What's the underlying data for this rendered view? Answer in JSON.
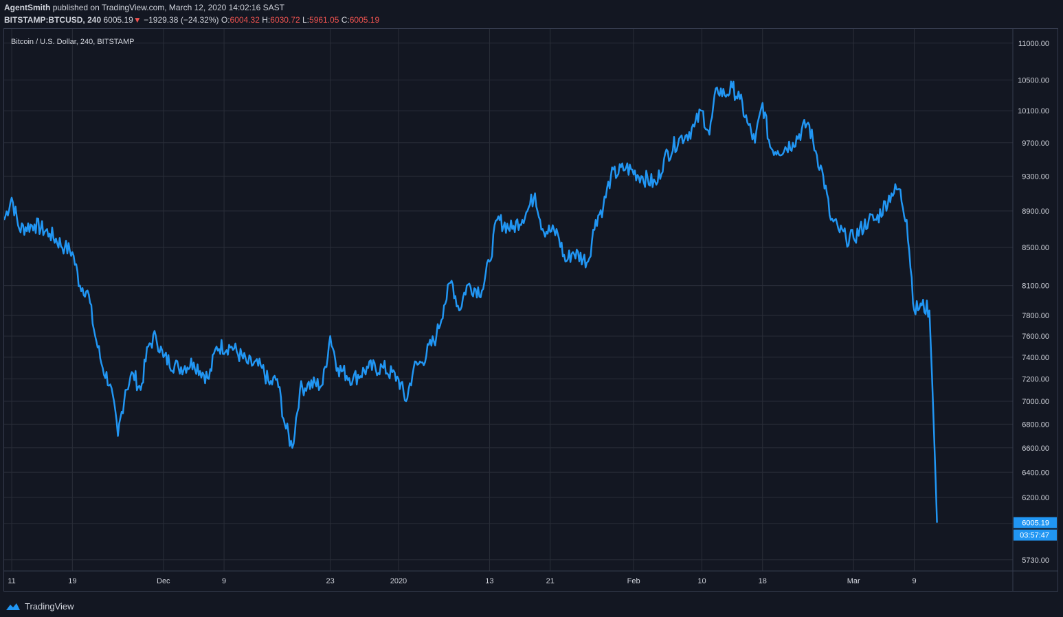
{
  "header": {
    "author": "AgentSmith",
    "published_text": "published on TradingView.com, March 12, 2020 14:02:16 SAST",
    "symbol": "BITSTAMP:BTCUSD, 240",
    "last": "6005.19",
    "change": "−1929.38 (−24.32%)",
    "open_label": "O:",
    "open": "6004.32",
    "high_label": "H:",
    "high": "6030.72",
    "low_label": "L:",
    "low": "5961.05",
    "close_label": "C:",
    "close": "6005.19",
    "down_arrow_icon": "triangle-down-icon",
    "neg_color": "#ef5350"
  },
  "footer": {
    "brand": "TradingView",
    "logo_icon": "tradingview-logo-icon"
  },
  "chart_data": {
    "type": "line",
    "title": "Bitcoin / U.S. Dollar, 240, BITSTAMP",
    "line_color": "#2196f3",
    "y_scale": "log",
    "ylim": [
      5650,
      11200
    ],
    "grid": true,
    "y_ticks": [
      "11000.00",
      "10500.00",
      "10100.00",
      "9700.00",
      "9300.00",
      "8900.00",
      "8500.00",
      "8100.00",
      "7800.00",
      "7600.00",
      "7400.00",
      "7200.00",
      "7000.00",
      "6800.00",
      "6600.00",
      "6400.00",
      "6200.00",
      "6000.00",
      "5730.00"
    ],
    "x_ticks": [
      {
        "label": "11",
        "date": "2019-11-11"
      },
      {
        "label": "19",
        "date": "2019-11-19"
      },
      {
        "label": "Dec",
        "date": "2019-12-01"
      },
      {
        "label": "9",
        "date": "2019-12-09"
      },
      {
        "label": "23",
        "date": "2019-12-23"
      },
      {
        "label": "2020",
        "date": "2020-01-01"
      },
      {
        "label": "13",
        "date": "2020-01-13"
      },
      {
        "label": "21",
        "date": "2020-01-21"
      },
      {
        "label": "Feb",
        "date": "2020-02-01"
      },
      {
        "label": "10",
        "date": "2020-02-10"
      },
      {
        "label": "18",
        "date": "2020-02-18"
      },
      {
        "label": "Mar",
        "date": "2020-03-01"
      },
      {
        "label": "9",
        "date": "2020-03-09"
      }
    ],
    "x_range": [
      "2019-11-10",
      "2020-03-22"
    ],
    "price_badge": {
      "value": "6005.19",
      "countdown": "03:57:47",
      "color": "#2196f3"
    },
    "series": [
      {
        "x": [
          "2019-11-10",
          "2019-11-11",
          "2019-11-12",
          "2019-11-14",
          "2019-11-16",
          "2019-11-18",
          "2019-11-19",
          "2019-11-20",
          "2019-11-21",
          "2019-11-22",
          "2019-11-23",
          "2019-11-24",
          "2019-11-25",
          "2019-11-26",
          "2019-11-27",
          "2019-11-28",
          "2019-11-29",
          "2019-11-30",
          "2019-12-01",
          "2019-12-03",
          "2019-12-05",
          "2019-12-07",
          "2019-12-08",
          "2019-12-10",
          "2019-12-12",
          "2019-12-14",
          "2019-12-15",
          "2019-12-16",
          "2019-12-17",
          "2019-12-18",
          "2019-12-19",
          "2019-12-20",
          "2019-12-22",
          "2019-12-23",
          "2019-12-24",
          "2019-12-26",
          "2019-12-28",
          "2019-12-30",
          "2020-01-01",
          "2020-01-02",
          "2020-01-03",
          "2020-01-04",
          "2020-01-06",
          "2020-01-07",
          "2020-01-08",
          "2020-01-09",
          "2020-01-10",
          "2020-01-12",
          "2020-01-13",
          "2020-01-14",
          "2020-01-16",
          "2020-01-18",
          "2020-01-19",
          "2020-01-20",
          "2020-01-22",
          "2020-01-23",
          "2020-01-24",
          "2020-01-26",
          "2020-01-27",
          "2020-01-28",
          "2020-01-29",
          "2020-01-31",
          "2020-02-02",
          "2020-02-04",
          "2020-02-05",
          "2020-02-07",
          "2020-02-08",
          "2020-02-09",
          "2020-02-10",
          "2020-02-11",
          "2020-02-12",
          "2020-02-13",
          "2020-02-14",
          "2020-02-15",
          "2020-02-16",
          "2020-02-17",
          "2020-02-18",
          "2020-02-19",
          "2020-02-20",
          "2020-02-22",
          "2020-02-24",
          "2020-02-25",
          "2020-02-26",
          "2020-02-27",
          "2020-02-28",
          "2020-02-29",
          "2020-03-01",
          "2020-03-03",
          "2020-03-04",
          "2020-03-06",
          "2020-03-07",
          "2020-03-08",
          "2020-03-09",
          "2020-03-10",
          "2020-03-11",
          "2020-03-12"
        ],
        "values": [
          8800,
          9050,
          8700,
          8750,
          8650,
          8500,
          8450,
          8100,
          8050,
          7600,
          7300,
          7150,
          6700,
          7100,
          7250,
          7100,
          7500,
          7600,
          7400,
          7300,
          7350,
          7200,
          7500,
          7500,
          7350,
          7300,
          7150,
          7200,
          6800,
          6600,
          7100,
          7150,
          7150,
          7600,
          7300,
          7200,
          7300,
          7300,
          7200,
          7000,
          7300,
          7350,
          7600,
          7900,
          8150,
          7850,
          8100,
          8050,
          8350,
          8800,
          8700,
          8900,
          9100,
          8700,
          8650,
          8350,
          8450,
          8350,
          8800,
          8950,
          9300,
          9400,
          9300,
          9200,
          9500,
          9750,
          9800,
          9900,
          10100,
          9800,
          10400,
          10300,
          10400,
          10250,
          9950,
          9700,
          10200,
          9650,
          9600,
          9700,
          9950,
          9600,
          9300,
          8800,
          8700,
          8600,
          8600,
          8800,
          8800,
          9100,
          9150,
          8800,
          7850,
          7900,
          7850,
          6005
        ]
      }
    ]
  }
}
